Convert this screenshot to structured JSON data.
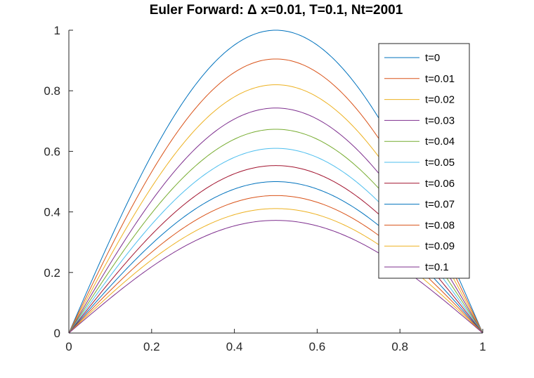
{
  "chart_data": {
    "type": "line",
    "title": "Euler Forward: Δ x=0.01, T=0.1, Nt=2001",
    "xlabel": "",
    "ylabel": "",
    "xlim": [
      0,
      1
    ],
    "ylim": [
      0,
      1
    ],
    "x_ticks": [
      "0",
      "0.2",
      "0.4",
      "0.6",
      "0.8",
      "1"
    ],
    "y_ticks": [
      "0",
      "0.2",
      "0.4",
      "0.6",
      "0.8",
      "1"
    ],
    "grid": false,
    "legend_position": "top-right",
    "curve_shape": "sin(pi x) scaled by peak",
    "x": [
      0,
      0.1,
      0.2,
      0.3,
      0.4,
      0.5,
      0.6,
      0.7,
      0.8,
      0.9,
      1.0
    ],
    "series": [
      {
        "name": "t=0",
        "color": "#0072BD",
        "peak": 1.0
      },
      {
        "name": "t=0.01",
        "color": "#D95319",
        "peak": 0.905
      },
      {
        "name": "t=0.02",
        "color": "#EDB120",
        "peak": 0.82
      },
      {
        "name": "t=0.03",
        "color": "#7E2F8E",
        "peak": 0.743
      },
      {
        "name": "t=0.04",
        "color": "#77AC30",
        "peak": 0.673
      },
      {
        "name": "t=0.05",
        "color": "#4DBEEE",
        "peak": 0.61
      },
      {
        "name": "t=0.06",
        "color": "#A2142F",
        "peak": 0.553
      },
      {
        "name": "t=0.07",
        "color": "#0072BD",
        "peak": 0.5
      },
      {
        "name": "t=0.08",
        "color": "#D95319",
        "peak": 0.454
      },
      {
        "name": "t=0.09",
        "color": "#EDB120",
        "peak": 0.411
      },
      {
        "name": "t=0.1",
        "color": "#7E2F8E",
        "peak": 0.372
      }
    ]
  }
}
